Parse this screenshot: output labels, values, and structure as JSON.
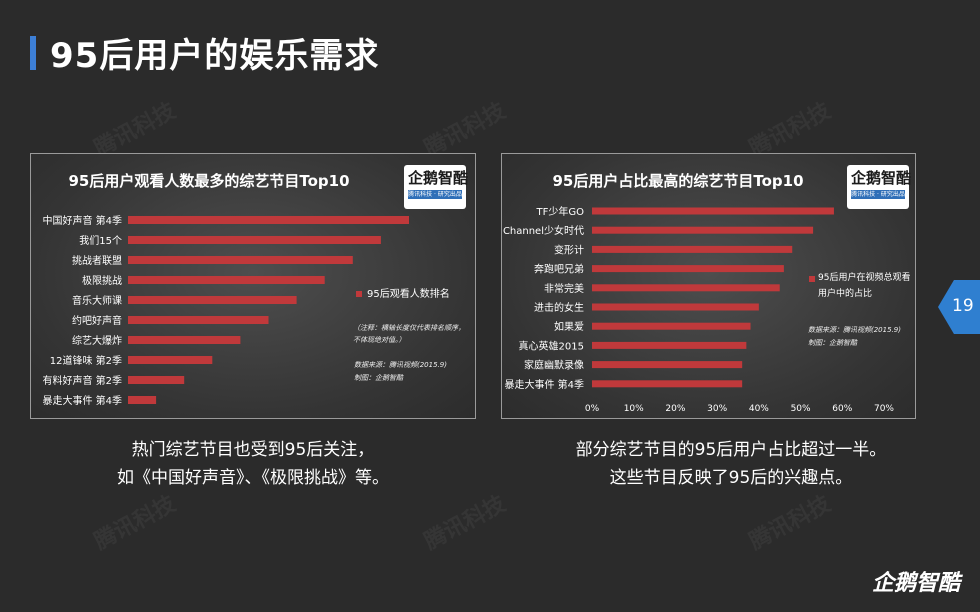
{
  "slide": {
    "title": "95后用户的娱乐需求",
    "page_number": "19",
    "brand": "企鹅智酷",
    "watermark": "腾讯科技",
    "logo_name": "企鹅智酷",
    "logo_tag": "腾讯科技 · 研究出品"
  },
  "left_caption": {
    "line1": "热门综艺节目也受到95后关注，",
    "line2": "如《中国好声音》、《极限挑战》等。"
  },
  "right_caption": {
    "line1": "部分综艺节目的95后用户占比超过一半。",
    "line2": "这些节目反映了95后的兴趣点。"
  },
  "colors": {
    "bar": "#c0393b",
    "accent": "#3d7fd6"
  },
  "chart_data": [
    {
      "type": "bar",
      "orientation": "horizontal",
      "title": "95后用户观看人数最多的综艺节目Top10",
      "categories": [
        "中国好声音 第4季",
        "我们15个",
        "挑战者联盟",
        "极限挑战",
        "音乐大师课",
        "约吧好声音",
        "综艺大爆炸",
        "12道锋味 第2季",
        "有料好声音 第2季",
        "暴走大事件 第4季"
      ],
      "values": [
        10,
        9,
        8,
        7,
        6,
        5,
        4,
        3,
        2,
        1
      ],
      "legend": "95后观看人数排名",
      "legend_position": "right",
      "note": "（注释：横轴长度仅代表排名顺序，不体现绝对值。）",
      "source": "数据来源：腾讯视频(2015.9)",
      "producer": "制图：企鹅智酷",
      "x_axis_shown": false
    },
    {
      "type": "bar",
      "orientation": "horizontal",
      "title": "95后用户占比最高的综艺节目Top10",
      "categories": [
        "TF少年GO",
        "Channel少女时代",
        "变形计",
        "奔跑吧兄弟",
        "非常完美",
        "进击的女生",
        "如果爱",
        "真心英雄2015",
        "家庭幽默录像",
        "暴走大事件 第4季"
      ],
      "values": [
        58,
        53,
        48,
        46,
        45,
        40,
        38,
        37,
        36,
        36
      ],
      "legend": "95后用户在视频总观看用户中的占比",
      "legend_position": "right",
      "source": "数据来源：腾讯视频(2015.9)",
      "producer": "制图：企鹅智酷",
      "xlim": [
        0,
        70
      ],
      "x_ticks": [
        "0%",
        "10%",
        "20%",
        "30%",
        "40%",
        "50%",
        "60%",
        "70%"
      ]
    }
  ]
}
